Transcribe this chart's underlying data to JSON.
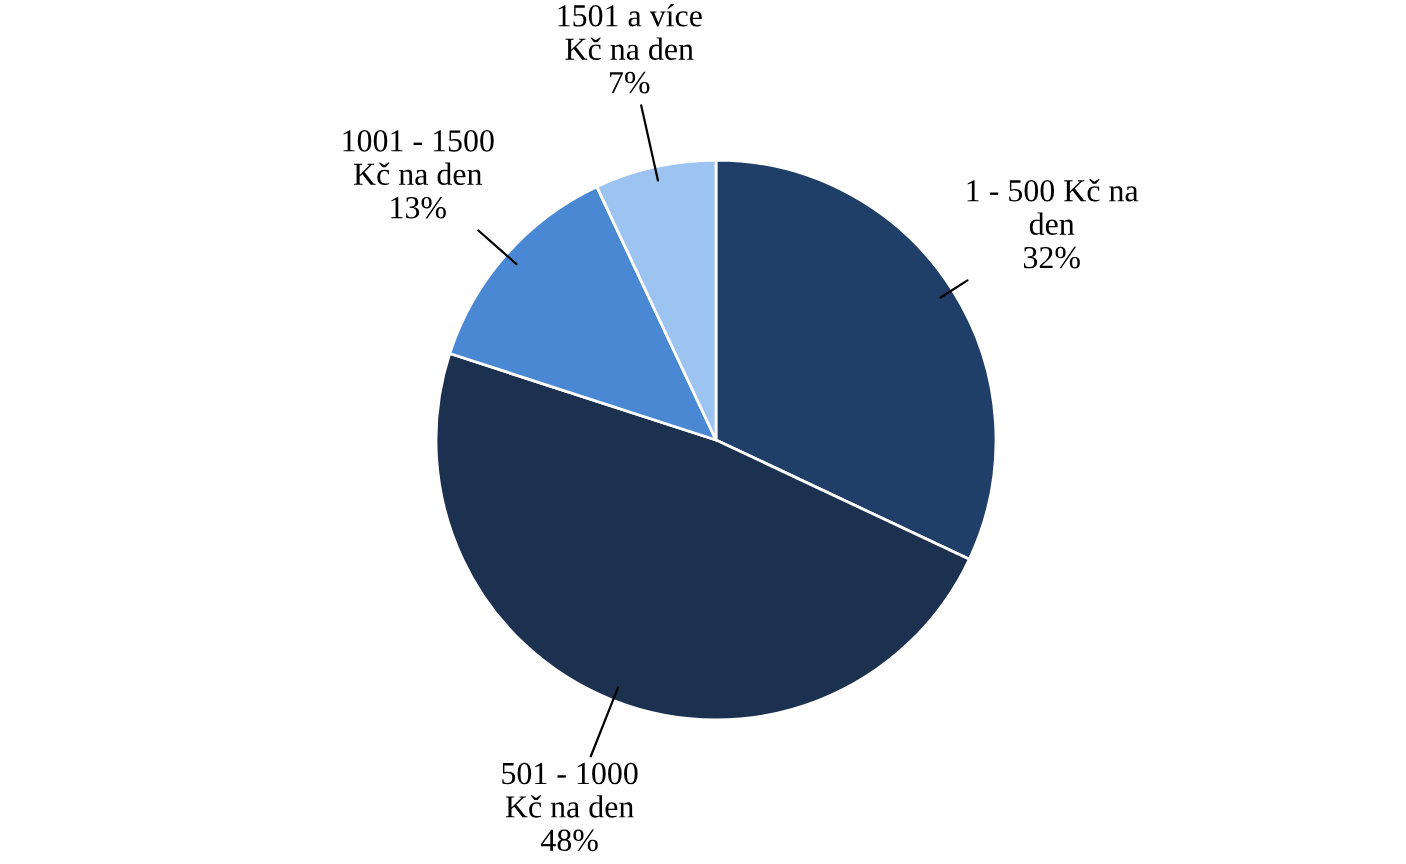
{
  "chart_data": {
    "type": "pie",
    "categories": [
      "1 - 500 Kč na\nden",
      "501 - 1000\nKč na den",
      "1001 - 1500\nKč na den",
      "1501 a více\nKč na den"
    ],
    "values": [
      32,
      48,
      13,
      7
    ],
    "colors": [
      "#1f3f68",
      "#1c3050",
      "#4a88d4",
      "#9dc4f0"
    ],
    "value_labels": [
      "32%",
      "48%",
      "13%",
      "7%"
    ]
  }
}
